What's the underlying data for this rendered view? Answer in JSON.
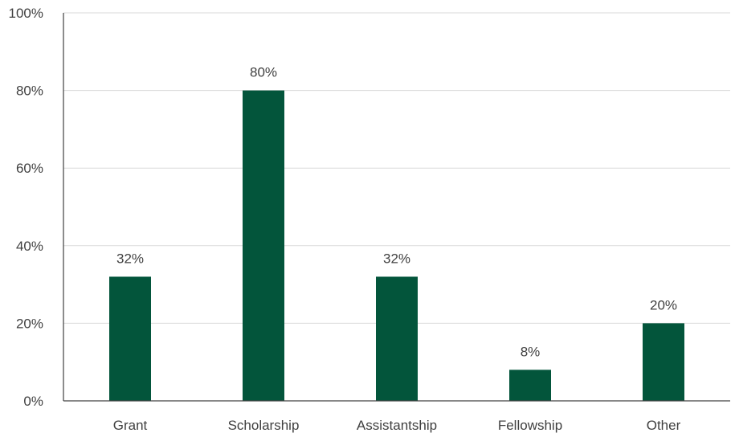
{
  "chart_data": {
    "type": "bar",
    "title": "",
    "xlabel": "",
    "ylabel": "",
    "categories": [
      "Grant",
      "Scholarship",
      "Assistantship",
      "Fellowship",
      "Other"
    ],
    "values": [
      32,
      80,
      32,
      8,
      20
    ],
    "data_labels": [
      "32%",
      "80%",
      "32%",
      "8%",
      "20%"
    ],
    "ylim": [
      0,
      100
    ],
    "yticks": [
      0,
      20,
      40,
      60,
      80,
      100
    ],
    "ytick_labels": [
      "0%",
      "20%",
      "40%",
      "60%",
      "80%",
      "100%"
    ],
    "grid": true,
    "legend": "none",
    "bar_color": "#03553b"
  }
}
